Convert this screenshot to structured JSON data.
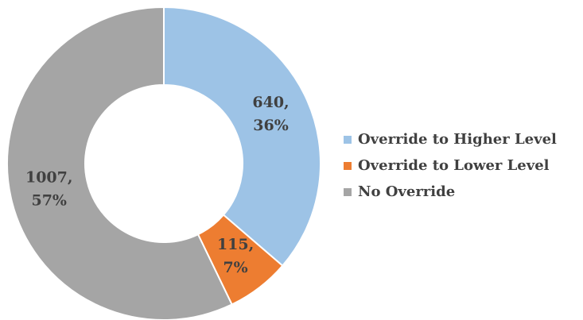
{
  "chart_data": {
    "type": "donut",
    "categories": [
      "Override to Higher Level",
      "Override to Lower Level",
      "No Override"
    ],
    "values": [
      640,
      115,
      1007
    ],
    "value_labels": [
      [
        "640,",
        "36%"
      ],
      [
        "115,",
        "7%"
      ],
      [
        "1007,",
        "57%"
      ]
    ],
    "colors": [
      "#9dc3e6",
      "#ed7d31",
      "#a5a5a5"
    ],
    "legend": "right"
  }
}
